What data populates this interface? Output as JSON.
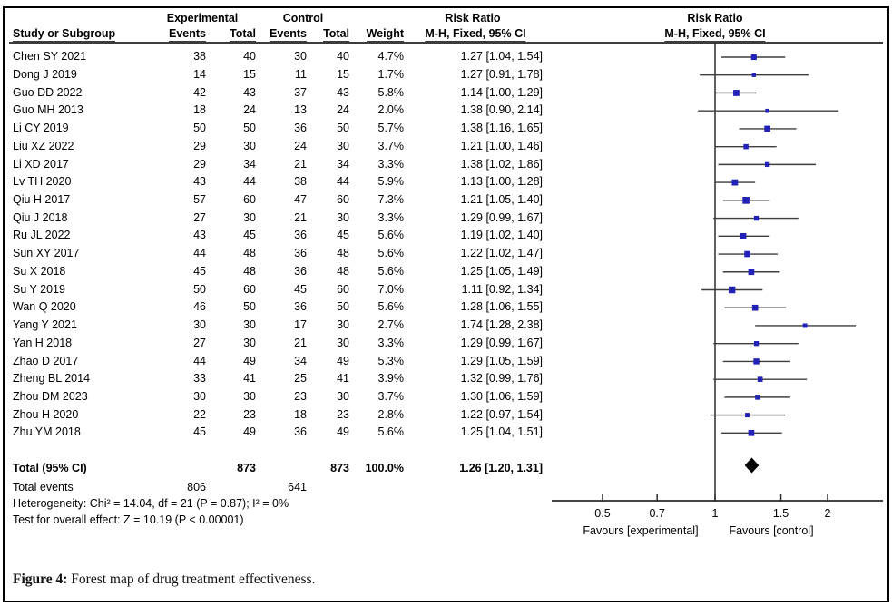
{
  "header": {
    "study_col": "Study or Subgroup",
    "experimental": "Experimental",
    "control": "Control",
    "events": "Events",
    "total": "Total",
    "weight": "Weight",
    "risk_ratio": "Risk Ratio",
    "method_ci": "M-H, Fixed, 95% CI"
  },
  "chart_data": {
    "type": "forest",
    "effect_measure": "Risk Ratio",
    "method": "M-H, Fixed, 95% CI",
    "x_scale": "log",
    "x_ticks": [
      "0.5",
      "0.7",
      "1",
      "1.5",
      "2"
    ],
    "x_axis_range": [
      0.37,
      2.81
    ],
    "favours_left": "Favours [experimental]",
    "favours_right": "Favours [control]",
    "studies": [
      {
        "name": "Chen SY 2021",
        "exp_events": 38,
        "exp_total": 40,
        "ctl_events": 30,
        "ctl_total": 40,
        "weight": "4.7%",
        "rr": 1.27,
        "lo": 1.04,
        "hi": 1.54,
        "ci_text": "1.27 [1.04, 1.54]"
      },
      {
        "name": "Dong J 2019",
        "exp_events": 14,
        "exp_total": 15,
        "ctl_events": 11,
        "ctl_total": 15,
        "weight": "1.7%",
        "rr": 1.27,
        "lo": 0.91,
        "hi": 1.78,
        "ci_text": "1.27 [0.91, 1.78]"
      },
      {
        "name": "Guo DD 2022",
        "exp_events": 42,
        "exp_total": 43,
        "ctl_events": 37,
        "ctl_total": 43,
        "weight": "5.8%",
        "rr": 1.14,
        "lo": 1.0,
        "hi": 1.29,
        "ci_text": "1.14 [1.00, 1.29]"
      },
      {
        "name": "Guo MH 2013",
        "exp_events": 18,
        "exp_total": 24,
        "ctl_events": 13,
        "ctl_total": 24,
        "weight": "2.0%",
        "rr": 1.38,
        "lo": 0.9,
        "hi": 2.14,
        "ci_text": "1.38 [0.90, 2.14]"
      },
      {
        "name": "Li CY 2019",
        "exp_events": 50,
        "exp_total": 50,
        "ctl_events": 36,
        "ctl_total": 50,
        "weight": "5.7%",
        "rr": 1.38,
        "lo": 1.16,
        "hi": 1.65,
        "ci_text": "1.38 [1.16, 1.65]"
      },
      {
        "name": "Liu XZ 2022",
        "exp_events": 29,
        "exp_total": 30,
        "ctl_events": 24,
        "ctl_total": 30,
        "weight": "3.7%",
        "rr": 1.21,
        "lo": 1.0,
        "hi": 1.46,
        "ci_text": "1.21 [1.00, 1.46]"
      },
      {
        "name": "Li XD 2017",
        "exp_events": 29,
        "exp_total": 34,
        "ctl_events": 21,
        "ctl_total": 34,
        "weight": "3.3%",
        "rr": 1.38,
        "lo": 1.02,
        "hi": 1.86,
        "ci_text": "1.38 [1.02, 1.86]"
      },
      {
        "name": "Lv TH 2020",
        "exp_events": 43,
        "exp_total": 44,
        "ctl_events": 38,
        "ctl_total": 44,
        "weight": "5.9%",
        "rr": 1.13,
        "lo": 1.0,
        "hi": 1.28,
        "ci_text": "1.13 [1.00, 1.28]"
      },
      {
        "name": "Qiu H 2017",
        "exp_events": 57,
        "exp_total": 60,
        "ctl_events": 47,
        "ctl_total": 60,
        "weight": "7.3%",
        "rr": 1.21,
        "lo": 1.05,
        "hi": 1.4,
        "ci_text": "1.21 [1.05, 1.40]"
      },
      {
        "name": "Qiu J 2018",
        "exp_events": 27,
        "exp_total": 30,
        "ctl_events": 21,
        "ctl_total": 30,
        "weight": "3.3%",
        "rr": 1.29,
        "lo": 0.99,
        "hi": 1.67,
        "ci_text": "1.29 [0.99, 1.67]"
      },
      {
        "name": "Ru JL 2022",
        "exp_events": 43,
        "exp_total": 45,
        "ctl_events": 36,
        "ctl_total": 45,
        "weight": "5.6%",
        "rr": 1.19,
        "lo": 1.02,
        "hi": 1.4,
        "ci_text": "1.19 [1.02, 1.40]"
      },
      {
        "name": "Sun XY 2017",
        "exp_events": 44,
        "exp_total": 48,
        "ctl_events": 36,
        "ctl_total": 48,
        "weight": "5.6%",
        "rr": 1.22,
        "lo": 1.02,
        "hi": 1.47,
        "ci_text": "1.22 [1.02, 1.47]"
      },
      {
        "name": "Su X 2018",
        "exp_events": 45,
        "exp_total": 48,
        "ctl_events": 36,
        "ctl_total": 48,
        "weight": "5.6%",
        "rr": 1.25,
        "lo": 1.05,
        "hi": 1.49,
        "ci_text": "1.25 [1.05, 1.49]"
      },
      {
        "name": "Su Y 2019",
        "exp_events": 50,
        "exp_total": 60,
        "ctl_events": 45,
        "ctl_total": 60,
        "weight": "7.0%",
        "rr": 1.11,
        "lo": 0.92,
        "hi": 1.34,
        "ci_text": "1.11 [0.92, 1.34]"
      },
      {
        "name": "Wan Q 2020",
        "exp_events": 46,
        "exp_total": 50,
        "ctl_events": 36,
        "ctl_total": 50,
        "weight": "5.6%",
        "rr": 1.28,
        "lo": 1.06,
        "hi": 1.55,
        "ci_text": "1.28 [1.06, 1.55]"
      },
      {
        "name": "Yang Y 2021",
        "exp_events": 30,
        "exp_total": 30,
        "ctl_events": 17,
        "ctl_total": 30,
        "weight": "2.7%",
        "rr": 1.74,
        "lo": 1.28,
        "hi": 2.38,
        "ci_text": "1.74 [1.28, 2.38]"
      },
      {
        "name": "Yan H 2018",
        "exp_events": 27,
        "exp_total": 30,
        "ctl_events": 21,
        "ctl_total": 30,
        "weight": "3.3%",
        "rr": 1.29,
        "lo": 0.99,
        "hi": 1.67,
        "ci_text": "1.29 [0.99, 1.67]"
      },
      {
        "name": "Zhao D 2017",
        "exp_events": 44,
        "exp_total": 49,
        "ctl_events": 34,
        "ctl_total": 49,
        "weight": "5.3%",
        "rr": 1.29,
        "lo": 1.05,
        "hi": 1.59,
        "ci_text": "1.29 [1.05, 1.59]"
      },
      {
        "name": "Zheng BL 2014",
        "exp_events": 33,
        "exp_total": 41,
        "ctl_events": 25,
        "ctl_total": 41,
        "weight": "3.9%",
        "rr": 1.32,
        "lo": 0.99,
        "hi": 1.76,
        "ci_text": "1.32 [0.99, 1.76]"
      },
      {
        "name": "Zhou DM 2023",
        "exp_events": 30,
        "exp_total": 30,
        "ctl_events": 23,
        "ctl_total": 30,
        "weight": "3.7%",
        "rr": 1.3,
        "lo": 1.06,
        "hi": 1.59,
        "ci_text": "1.30 [1.06, 1.59]"
      },
      {
        "name": "Zhou H 2020",
        "exp_events": 22,
        "exp_total": 23,
        "ctl_events": 18,
        "ctl_total": 23,
        "weight": "2.8%",
        "rr": 1.22,
        "lo": 0.97,
        "hi": 1.54,
        "ci_text": "1.22 [0.97, 1.54]"
      },
      {
        "name": "Zhu YM 2018",
        "exp_events": 45,
        "exp_total": 49,
        "ctl_events": 36,
        "ctl_total": 49,
        "weight": "5.6%",
        "rr": 1.25,
        "lo": 1.04,
        "hi": 1.51,
        "ci_text": "1.25 [1.04, 1.51]"
      }
    ],
    "total": {
      "label": "Total (95% CI)",
      "exp_total": 873,
      "ctl_total": 873,
      "weight": "100.0%",
      "rr": 1.26,
      "lo": 1.2,
      "hi": 1.31,
      "ci_text": "1.26 [1.20, 1.31]"
    },
    "total_events": {
      "label": "Total events",
      "exp": 806,
      "ctl": 641
    },
    "heterogeneity": "Heterogeneity: Chi² = 14.04, df = 21 (P = 0.87); I² = 0%",
    "overall_effect": "Test for overall effect: Z = 10.19 (P < 0.00001)"
  },
  "caption": {
    "label": "Figure 4:",
    "text": " Forest map of drug treatment effectiveness."
  },
  "colors": {
    "marker": "#2222b8",
    "diamond": "#000000",
    "ci_line": "#3d3d3d",
    "axis": "#2b2b2b",
    "rule": "#3c3c3c"
  }
}
